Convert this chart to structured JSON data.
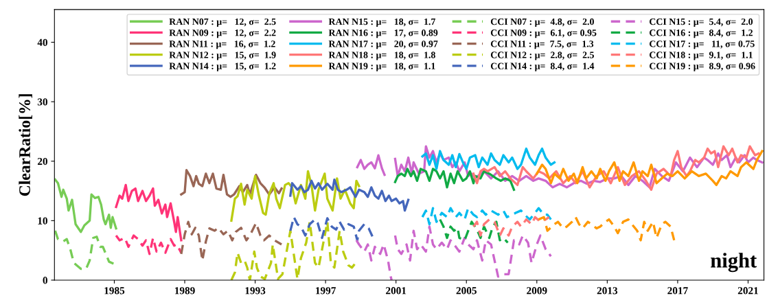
{
  "chart_data": {
    "type": "line",
    "ylabel": "ClearRatio[%]",
    "xlim": [
      1981.6,
      2021.9
    ],
    "ylim": [
      0,
      45.5
    ],
    "xticks": [
      1985,
      1989,
      1993,
      1997,
      2001,
      2005,
      2009,
      2013,
      2017,
      2021
    ],
    "yticks": [
      0,
      10,
      20,
      30,
      40
    ],
    "grid": false,
    "legend": "top right",
    "marker": "none",
    "annotations": [
      "night"
    ],
    "series": [
      {
        "name": "RAN N07 : μ=   12, σ=  2.5",
        "color": "#77cc55",
        "line_style": "solid",
        "x": [
          1981.64,
          1981.8,
          1982.0,
          1982.1,
          1982.3,
          1982.4,
          1982.6,
          1982.8,
          1983.1,
          1983.3,
          1983.6,
          1983.7,
          1983.9,
          1984.1,
          1984.25,
          1984.4,
          1984.5,
          1984.7,
          1984.8,
          1984.9,
          1985.1
        ],
        "values": [
          16.9,
          16.3,
          14.0,
          15.2,
          13.7,
          11.7,
          13.5,
          9.4,
          8.1,
          9.2,
          10,
          14.4,
          13.8,
          14,
          12.7,
          10.2,
          9.4,
          11,
          8.8,
          10.6,
          8.7
        ]
      },
      {
        "name": "RAN N09 : μ=   12, σ=  2.2",
        "color": "#ff3377",
        "line_style": "solid",
        "x": [
          1985.1,
          1985.3,
          1985.45,
          1985.65,
          1985.8,
          1986.0,
          1986.2,
          1986.35,
          1986.6,
          1986.8,
          1987.0,
          1987.2,
          1987.3,
          1987.5,
          1987.7,
          1987.9,
          1988.0,
          1988.2,
          1988.4,
          1988.5,
          1988.6,
          1988.8
        ],
        "values": [
          12.3,
          14.2,
          13.7,
          16,
          13.3,
          15,
          15.4,
          13.3,
          15,
          13.3,
          14.2,
          15.4,
          12.5,
          13.5,
          11.2,
          12.7,
          10.6,
          12.9,
          9.8,
          8.1,
          10.6,
          6.7
        ]
      },
      {
        "name": "RAN N11 : μ=   16, σ=  1.2",
        "color": "#996655",
        "line_style": "solid",
        "x": [
          1988.8,
          1989.0,
          1989.1,
          1989.3,
          1989.5,
          1989.65,
          1989.8,
          1990.0,
          1990.2,
          1990.4,
          1990.6,
          1990.8,
          1991.05,
          1991.2,
          1991.4,
          1991.6,
          1991.8,
          1992.1,
          1992.3,
          1992.55,
          1992.7,
          1993.05,
          1993.3,
          1993.55,
          1993.8,
          1994.1,
          1994.35,
          1994.5
        ],
        "values": [
          14.4,
          14.8,
          18.5,
          17.5,
          15.8,
          17.5,
          16.2,
          15.8,
          17.9,
          16.3,
          17.9,
          15.4,
          15.2,
          17.7,
          14.4,
          14,
          14.4,
          15.8,
          14.8,
          16,
          14.4,
          17.7,
          16.3,
          15.5,
          14.4,
          15.6,
          14.6,
          15.4
        ]
      },
      {
        "name": "RAN N12 : μ=   15, σ=  1.9",
        "color": "#bbcc11",
        "line_style": "solid",
        "x": [
          1991.65,
          1991.85,
          1992.0,
          1992.2,
          1992.4,
          1992.55,
          1992.8,
          1993.0,
          1993.2,
          1993.45,
          1993.6,
          1993.8,
          1994.05,
          1994.2,
          1994.4,
          1994.7,
          1994.9,
          1995.1,
          1995.3,
          1995.6,
          1995.85,
          1996.0,
          1996.2,
          1996.4,
          1996.6,
          1996.95,
          1997.1,
          1997.4,
          1997.65,
          1997.85,
          1998.1,
          1998.4,
          1998.6,
          1998.75,
          1998.9
        ],
        "values": [
          10,
          13.7,
          14.1,
          16.2,
          12.7,
          15.2,
          13.7,
          17.5,
          14.4,
          11.3,
          11.0,
          14.5,
          16.3,
          13.7,
          12.1,
          16,
          16.3,
          15.6,
          12.9,
          16,
          13.7,
          18.3,
          16,
          11.7,
          15.2,
          17.9,
          13.7,
          11.7,
          17.1,
          13.7,
          15.2,
          12.9,
          12.1,
          16.7,
          15.8
        ]
      },
      {
        "name": "RAN N14 : μ=   15, σ=  1.2",
        "color": "#4466bb",
        "line_style": "solid",
        "x": [
          1995.0,
          1995.1,
          1995.4,
          1995.6,
          1995.8,
          1996.0,
          1996.2,
          1996.4,
          1996.6,
          1996.8,
          1997.1,
          1997.4,
          1997.5,
          1997.7,
          1997.9,
          1998.2,
          1998.4,
          1998.7,
          1998.9,
          1999.2,
          1999.4,
          1999.6,
          1999.8,
          2000.0,
          2000.2,
          2000.4,
          2000.6,
          2000.75,
          2001.0,
          2001.2,
          2001.4,
          2001.5,
          2001.7
        ],
        "values": [
          14.2,
          16.3,
          15.2,
          15.8,
          14.8,
          15.2,
          16.7,
          15.4,
          16.3,
          15.2,
          16.2,
          15.2,
          16.9,
          15.2,
          14.8,
          15.2,
          15.6,
          14,
          15.2,
          14.8,
          14,
          15.6,
          14.2,
          13.7,
          15,
          13.3,
          14.2,
          13.3,
          13.7,
          12.9,
          13.3,
          11.7,
          13.5
        ]
      },
      {
        "name": "RAN N15 : μ=   18, σ=  1.7",
        "color": "#cc66cc",
        "line_style": "solid",
        "x": [
          1998.8,
          1999.0,
          1999.2,
          1999.4,
          1999.6,
          1999.8,
          2000.0,
          2000.2,
          2000.35,
          2000.6,
          2000.95,
          2001.1,
          2001.3,
          2001.5,
          2001.7,
          2001.9,
          2002.0,
          2002.3,
          2002.6,
          2002.7,
          2002.9,
          2003.1,
          2003.3,
          2003.5,
          2003.7,
          2004.0,
          2004.2,
          2004.4,
          2004.6,
          2004.9,
          2005.1,
          2005.3,
          2005.5,
          2005.8,
          2006.0,
          2006.4,
          2006.8,
          2007.2,
          2007.6,
          2008.0,
          2008.4,
          2008.8,
          2009.1,
          2009.5,
          2009.9,
          2010.3,
          2010.7,
          2011.1,
          2011.5,
          2011.85,
          2012.25,
          2012.6,
          2013.0,
          2013.4,
          2013.8,
          2014.2,
          2014.6,
          2015.0,
          2015.4,
          2015.7,
          2016.1,
          2016.5,
          2016.9,
          2017.3,
          2017.7,
          2018.1,
          2018.5,
          2018.7,
          2019.0,
          2019.3,
          2019.5,
          2019.8,
          2020.0,
          2020.3,
          2020.5,
          2020.8,
          2021.0,
          2021.3,
          2021.5,
          2021.8
        ],
        "values": [
          19,
          20.2,
          18.7,
          19.4,
          19.8,
          18.8,
          21,
          18.8,
          17.7,
          null,
          20.4,
          17.5,
          19.4,
          18.3,
          20.6,
          17.9,
          19.8,
          17.9,
          18.3,
          22.5,
          20.6,
          21.7,
          19.8,
          21.3,
          20.2,
          20.6,
          19,
          19.8,
          18.3,
          19.8,
          17.5,
          17.9,
          17.1,
          17.9,
          18.3,
          17.1,
          18.3,
          16.7,
          17.5,
          16.7,
          17.5,
          16.7,
          17.1,
          16.7,
          15.6,
          16.2,
          15.6,
          16.3,
          16.7,
          16.2,
          16.7,
          16.5,
          17.1,
          17.1,
          17.5,
          16,
          17.5,
          16.7,
          15.6,
          18.7,
          17.5,
          16.7,
          19.8,
          18.3,
          20.6,
          19,
          20.6,
          20.2,
          19.4,
          21.3,
          20.2,
          21,
          19,
          20.6,
          19.8,
          21,
          19.8,
          20.6,
          20.2,
          19.8
        ]
      },
      {
        "name": "RAN N16 : μ=   17, σ= 0.89",
        "color": "#11aa44",
        "line_style": "solid",
        "x": [
          2000.95,
          2001.1,
          2001.3,
          2001.5,
          2001.65,
          2001.85,
          2002.0,
          2002.2,
          2002.4,
          2002.7,
          2002.9,
          2003.1,
          2003.3,
          2003.5,
          2003.7,
          2003.9,
          2004.1,
          2004.3,
          2004.5,
          2004.8,
          2005.0,
          2005.2,
          2005.4,
          2005.5,
          2005.8,
          2006.0,
          2006.3,
          2006.7,
          2006.95,
          2007.2,
          2007.5,
          2007.7
        ],
        "values": [
          16.5,
          17.5,
          17.9,
          17.5,
          18.7,
          17.5,
          18.3,
          16.7,
          18.7,
          18.3,
          16.7,
          18.7,
          18.3,
          17.1,
          18.3,
          15.6,
          17.9,
          16.3,
          18.3,
          16.7,
          17.1,
          18.3,
          16.3,
          17.5,
          17.1,
          18.3,
          17.9,
          17.1,
          16.7,
          17.1,
          16.7,
          15.2
        ]
      },
      {
        "name": "RAN N17 : μ=   20, σ= 0.97",
        "color": "#00bbee",
        "line_style": "solid",
        "x": [
          2002.5,
          2002.7,
          2002.9,
          2003.1,
          2003.3,
          2003.5,
          2003.7,
          2004.0,
          2004.2,
          2004.4,
          2004.6,
          2004.8,
          2005.0,
          2005.2,
          2005.5,
          2005.7,
          2005.9,
          2006.2,
          2006.4,
          2006.6,
          2006.9,
          2007.1,
          2007.4,
          2007.6,
          2007.9,
          2008.1,
          2008.4,
          2008.6,
          2008.9,
          2009.1,
          2009.3,
          2009.5,
          2009.8,
          2010.0
        ],
        "values": [
          20.8,
          21.3,
          19.4,
          21,
          18.7,
          21.7,
          20.2,
          19.4,
          21,
          19,
          21.2,
          19.8,
          18.7,
          20.6,
          21,
          19,
          20.6,
          19.4,
          21.3,
          20.2,
          19.4,
          21,
          19.8,
          20.6,
          18.7,
          19.4,
          22.1,
          20.6,
          19.4,
          21,
          22.1,
          20.6,
          19.4,
          19.8
        ]
      },
      {
        "name": "RAN N18 : μ=   18, σ=  1.8",
        "color": "#ff7777",
        "line_style": "solid",
        "x": [
          2005.4,
          2005.6,
          2005.8,
          2006.0,
          2006.2,
          2006.6,
          2006.9,
          2007.2,
          2007.5,
          2007.9,
          2008.2,
          2008.4,
          2008.8,
          2009.1,
          2009.4,
          2009.7,
          2010.1,
          2010.5,
          2010.9,
          2011.2,
          2011.6,
          2012.0,
          2012.4,
          2012.8,
          2013.2,
          2013.6,
          2014.0,
          2014.4,
          2014.8,
          2015.2,
          2015.5,
          2015.8,
          2016.2,
          2016.6,
          2016.8,
          2017.0,
          2017.2,
          2017.5,
          2017.7,
          2018.0,
          2018.2,
          2018.5,
          2018.7,
          2018.9,
          2019.1,
          2019.3,
          2019.6,
          2019.9,
          2020.1,
          2020.4,
          2020.6,
          2020.9,
          2021.1,
          2021.4,
          2021.6
        ],
        "values": [
          17.9,
          16.3,
          18.3,
          18.7,
          18.3,
          19,
          17.5,
          18.3,
          17.1,
          16,
          19,
          18.3,
          17.1,
          18.3,
          17.9,
          17.1,
          18.3,
          16.3,
          17.5,
          16.3,
          18.3,
          15.6,
          17.5,
          18.3,
          16.3,
          19,
          16,
          17.5,
          18.3,
          16.7,
          15.2,
          17.9,
          18.7,
          17.5,
          20.2,
          21.7,
          19,
          17.5,
          18.3,
          20.2,
          19.8,
          20.6,
          22.1,
          21.3,
          21.7,
          19,
          22.5,
          21,
          22.1,
          19.8,
          21,
          20.6,
          22.5,
          21,
          21.3
        ]
      },
      {
        "name": "RAN N19 : μ=   18, σ=  1.1",
        "color": "#ff9900",
        "line_style": "solid",
        "x": [
          2009.0,
          2009.3,
          2009.5,
          2009.8,
          2010.0,
          2010.3,
          2010.5,
          2010.8,
          2011.1,
          2011.3,
          2011.6,
          2011.8,
          2012.1,
          2012.4,
          2012.6,
          2012.9,
          2013.1,
          2013.4,
          2013.7,
          2013.9,
          2014.2,
          2014.5,
          2014.8,
          2015.0,
          2015.3,
          2015.5,
          2015.8,
          2016.1,
          2016.4,
          2016.7,
          2017.0,
          2017.4,
          2017.8,
          2018.2,
          2018.6,
          2019.0,
          2019.2,
          2019.5,
          2019.75,
          2020.0,
          2020.4,
          2020.6,
          2020.9,
          2021.3,
          2021.5,
          2021.8
        ],
        "values": [
          17.9,
          19.4,
          18.7,
          16.3,
          17.9,
          17.1,
          18.7,
          16.7,
          17.9,
          16.3,
          19,
          17.1,
          18.3,
          17.1,
          18.7,
          16.7,
          18.3,
          19.8,
          16.7,
          18.3,
          17.5,
          19.8,
          16.7,
          18.3,
          17.5,
          19.4,
          16.3,
          17.1,
          17.9,
          17.5,
          18.3,
          17.1,
          18.3,
          17.5,
          17.9,
          16.7,
          16,
          17.5,
          17.1,
          18.3,
          17.5,
          19,
          19.8,
          18.7,
          20.2,
          21.7
        ]
      },
      {
        "name": "CCI N07 : μ=  4.8, σ=  2.0",
        "color": "#77cc55",
        "line_style": "dashed",
        "x": [
          1981.64,
          1981.8,
          1982.1,
          1982.3,
          1982.5,
          1982.7,
          1983.1,
          1983.4,
          1983.6,
          1983.8,
          1984.0,
          1984.2,
          1984.35,
          1984.7,
          1985.0
        ],
        "values": [
          8.3,
          6.9,
          6.5,
          6.9,
          5.2,
          2.9,
          1.9,
          1.9,
          3.3,
          7.1,
          7.3,
          5.6,
          5.6,
          3.1,
          2.7
        ]
      },
      {
        "name": "CCI N09 : μ=  6.1, σ= 0.95",
        "color": "#ff3377",
        "line_style": "dashed",
        "x": [
          1985.1,
          1985.3,
          1985.6,
          1985.8,
          1986.1,
          1986.35,
          1986.6,
          1986.8,
          1987.0,
          1987.2,
          1987.4,
          1987.65,
          1987.9,
          1988.2,
          1988.4,
          1988.55,
          1988.8
        ],
        "values": [
          7.5,
          6.7,
          7.1,
          5.6,
          7.5,
          6.9,
          5.8,
          6.7,
          4.4,
          7.1,
          4.8,
          6.3,
          4.6,
          6.9,
          5.8,
          6,
          4.6
        ]
      },
      {
        "name": "CCI N11 : μ=  7.5, σ=  1.3",
        "color": "#996655",
        "line_style": "dashed",
        "x": [
          1988.8,
          1989.0,
          1989.2,
          1989.4,
          1989.6,
          1989.8,
          1990.0,
          1990.2,
          1990.4,
          1990.7,
          1990.9,
          1991.2,
          1991.45,
          1991.7,
          1991.9,
          1992.2,
          1992.5,
          1992.7,
          1993.05,
          1993.3,
          1993.5,
          1993.8,
          1994.1,
          1994.5
        ],
        "values": [
          4.4,
          7.7,
          9.8,
          7.7,
          8.8,
          7.5,
          3.3,
          6.5,
          8.7,
          8.3,
          8.8,
          7.7,
          8.3,
          6.7,
          8.1,
          8.8,
          6.7,
          7.5,
          9.6,
          7.5,
          6.7,
          7.5,
          6.7,
          6
        ]
      },
      {
        "name": "CCI N12 : μ=  2.8, σ=  2.5",
        "color": "#bbcc11",
        "line_style": "dashed",
        "x": [
          1991.65,
          1991.85,
          1992.0,
          1992.2,
          1992.4,
          1992.55,
          1992.7,
          1992.95,
          1993.1,
          1993.3,
          1993.55,
          1993.9,
          1994.0,
          1994.3,
          1994.55,
          1994.8,
          1995.0,
          1995.4,
          1995.6,
          1995.9,
          1996.1,
          1996.4,
          1996.6,
          1996.9,
          1997.1,
          1997.3,
          1997.5,
          1997.8,
          1998.0,
          1998.3,
          1998.5,
          1998.7
        ],
        "values": [
          0,
          1.3,
          4.6,
          2.9,
          3.3,
          2.1,
          0,
          4.8,
          2.1,
          0.6,
          0.2,
          2.9,
          6,
          0.2,
          1,
          5,
          8.3,
          0.2,
          3.7,
          6.3,
          9.8,
          2.9,
          2.1,
          6.7,
          9.8,
          2.9,
          2.1,
          8.3,
          4.8,
          2.5,
          2.1,
          2.9
        ]
      },
      {
        "name": "CCI N14 : μ=  8.4, σ=  1.4",
        "color": "#4466bb",
        "line_style": "dashed",
        "x": [
          1995.0,
          1995.2,
          1995.4,
          1995.6,
          1995.85,
          1996.1,
          1996.4,
          1996.55,
          1996.8,
          1997.1,
          1997.35,
          1997.6,
          1997.8,
          1998.05,
          1998.3,
          1998.6,
          1998.8,
          1998.9,
          1999.2,
          1999.45,
          1999.7
        ],
        "values": [
          8.3,
          10.6,
          9.4,
          9,
          7.5,
          9.4,
          10.2,
          9.6,
          7.1,
          10.4,
          9,
          8.5,
          9.8,
          8.5,
          9.4,
          9,
          6.7,
          8.3,
          9.4,
          8.7,
          7.1
        ]
      },
      {
        "name": "CCI N15 : μ=  5.4, σ=  2.0",
        "color": "#cc66cc",
        "line_style": "dashed",
        "x": [
          1998.75,
          1998.9,
          1999.2,
          1999.4,
          1999.6,
          1999.8,
          2000.1,
          2000.3,
          2000.55,
          2000.7,
          2000.75,
          2000.85,
          2000.95,
          2001.1,
          2001.3,
          2001.6,
          2001.8,
          2002.0,
          2002.2,
          2002.4,
          2002.7,
          2002.9,
          2003.1,
          2003.3,
          2003.6,
          2003.9,
          2004.1,
          2004.4,
          2004.6,
          2004.9,
          2005.1,
          2005.4,
          2005.6,
          2005.9,
          2006.1,
          2006.4,
          2006.8,
          2007.1,
          2007.4,
          2007.7,
          2008.0,
          2008.2,
          2008.5,
          2008.7,
          2009.0,
          2009.2,
          2009.5,
          2009.8
        ],
        "values": [
          6.7,
          6,
          4.8,
          6,
          3.3,
          5.6,
          4.4,
          6,
          3.3,
          0.6,
          0,
          null,
          7.5,
          5.2,
          4.4,
          6,
          3.3,
          8.3,
          5.2,
          6,
          4.8,
          9,
          6,
          5.2,
          6.3,
          5.2,
          6.7,
          5.6,
          4.8,
          7.1,
          6,
          5.2,
          6.7,
          3.3,
          6.7,
          6,
          0.6,
          1,
          1,
          6.7,
          6,
          7.5,
          6.3,
          2.9,
          6,
          7.5,
          5.2,
          4
        ]
      },
      {
        "name": "CCI N16 : μ=  8.4, σ=  1.2",
        "color": "#11aa44",
        "line_style": "dashed",
        "x": [
          2003.5,
          2003.7,
          2003.9,
          2004.1,
          2004.3,
          2004.5,
          2004.6,
          2004.9,
          2005.1,
          2005.3,
          2005.6,
          2005.8,
          2006.0,
          2006.3,
          2006.5,
          2006.7,
          2006.9,
          2007.1,
          2007.35
        ],
        "values": [
          10.2,
          9,
          7.1,
          9,
          8.3,
          8.8,
          7.1,
          6.7,
          8.3,
          9.8,
          8.5,
          7.1,
          9,
          7.1,
          9,
          9.8,
          6.7,
          7.1,
          6.3
        ]
      },
      {
        "name": "CCI N17 : μ=   11, σ= 0.75",
        "color": "#00bbee",
        "line_style": "dashed",
        "x": [
          2002.5,
          2002.7,
          2002.9,
          2003.1,
          2003.3,
          2003.6,
          2003.9,
          2004.1,
          2004.4,
          2004.6,
          2004.9,
          2005.1,
          2005.4,
          2005.6,
          2005.9,
          2006.1,
          2006.4,
          2006.8,
          2007.1,
          2007.3,
          2007.6,
          2007.8,
          2008.1,
          2008.3,
          2008.6,
          2008.9,
          2009.1,
          2009.4,
          2009.6,
          2009.8
        ],
        "values": [
          10.6,
          11.7,
          9.4,
          12.1,
          9.8,
          11.3,
          10.6,
          12.1,
          10.6,
          11.3,
          10.2,
          12.1,
          11,
          10.6,
          11.7,
          11,
          11.7,
          11,
          11.7,
          10.6,
          11,
          11.3,
          11.7,
          11,
          10.2,
          11.3,
          12.1,
          11,
          11,
          10.2
        ]
      },
      {
        "name": "CCI N18 : μ=  9.1, σ=  1.1",
        "color": "#ff7777",
        "line_style": "dashed",
        "x": [
          2005.4,
          2005.6,
          2005.8,
          2006.0,
          2006.3,
          2006.6,
          2006.9,
          2007.1,
          2007.4,
          2007.6,
          2007.9,
          2008.1,
          2008.4,
          2008.7,
          2008.9,
          2009.2,
          2009.5,
          2009.7
        ],
        "values": [
          9,
          9.8,
          7.5,
          9.4,
          10.2,
          9.8,
          7.5,
          8.7,
          7.5,
          9,
          9.8,
          9,
          10.2,
          9.4,
          10.6,
          9.8,
          10.2,
          10.6
        ]
      },
      {
        "name": "CCI N19 : μ=  8.9, σ= 0.96",
        "color": "#ff9900",
        "line_style": "dashed",
        "x": [
          2009.1,
          2009.4,
          2009.6,
          2010.0,
          2010.2,
          2010.5,
          2010.7,
          2011.0,
          2011.2,
          2011.4,
          2011.6,
          2011.9,
          2012.1,
          2012.4,
          2012.6,
          2012.9,
          2013.1,
          2013.4,
          2013.6,
          2013.9,
          2014.2,
          2014.4,
          2014.7,
          2014.9,
          2015.1,
          2015.3,
          2015.6,
          2015.8,
          2016.1,
          2016.3,
          2016.6,
          2016.8
        ],
        "values": [
          10.2,
          10.6,
          8.3,
          9.4,
          9.8,
          8.7,
          9,
          9.8,
          10.6,
          9.4,
          8.7,
          9.8,
          9.4,
          8.7,
          9,
          9.8,
          10.2,
          9,
          7.9,
          9.8,
          10.2,
          9.4,
          8.3,
          6.7,
          9.8,
          8.3,
          9.8,
          7.1,
          9.4,
          9.8,
          9,
          6.7
        ]
      }
    ]
  }
}
